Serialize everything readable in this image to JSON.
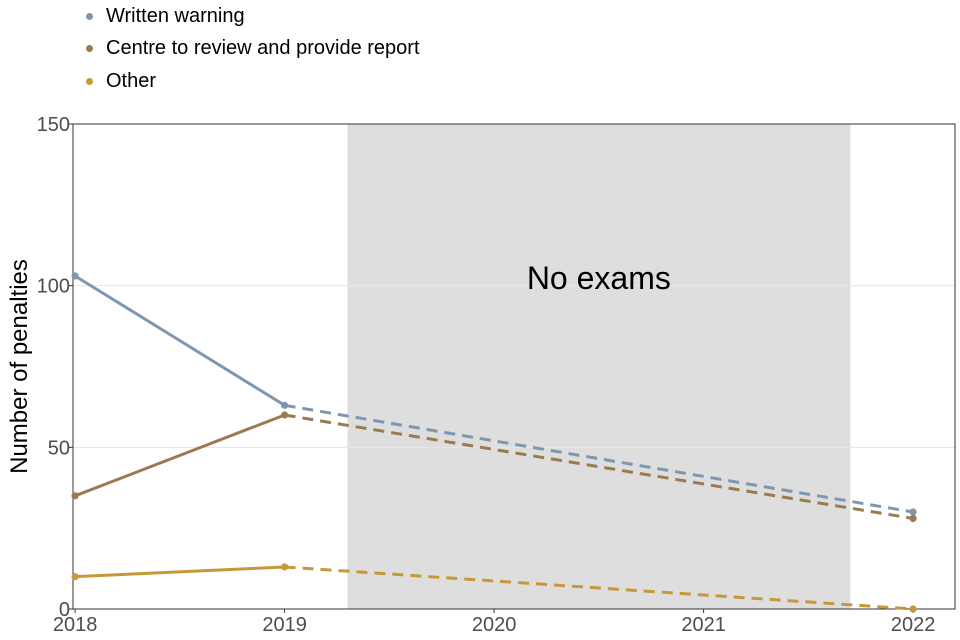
{
  "chart_data": {
    "type": "line",
    "title": "",
    "xlabel": "",
    "ylabel": "Number of penalties",
    "x": [
      2018,
      2019,
      2020,
      2021,
      2022
    ],
    "xlim": [
      2017.99,
      2022.2
    ],
    "ylim": [
      0,
      150
    ],
    "yticks": [
      0,
      50,
      100,
      150
    ],
    "grid": "horizontal",
    "legend_position": "top-left",
    "shaded_region": {
      "from": 2019.3,
      "to": 2021.7,
      "label": "No exams",
      "label_y": 99
    },
    "series": [
      {
        "name": "Written warning",
        "color": "#7f97ae",
        "points": [
          [
            2018,
            103
          ],
          [
            2019,
            63
          ],
          [
            2022,
            30
          ]
        ],
        "dashed_from": 2019
      },
      {
        "name": "Centre to review and provide report",
        "color": "#9a7b4f",
        "points": [
          [
            2018,
            35
          ],
          [
            2019,
            60
          ],
          [
            2022,
            28
          ]
        ],
        "dashed_from": 2019
      },
      {
        "name": "Other",
        "color": "#c6983a",
        "points": [
          [
            2018,
            10
          ],
          [
            2019,
            13
          ],
          [
            2022,
            0
          ]
        ],
        "dashed_from": 2019
      }
    ]
  }
}
